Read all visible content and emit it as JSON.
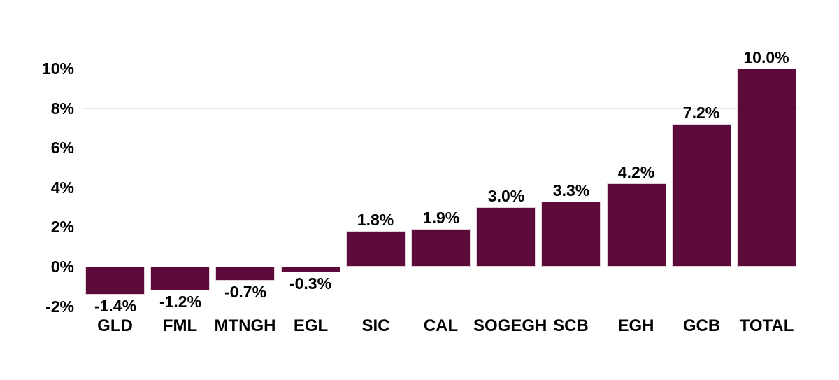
{
  "chart_data": {
    "type": "bar",
    "title": "",
    "xlabel": "",
    "ylabel": "",
    "categories": [
      "GLD",
      "FML",
      "MTNGH",
      "EGL",
      "SIC",
      "CAL",
      "SOGEGH",
      "SCB",
      "EGH",
      "GCB",
      "TOTAL"
    ],
    "values": [
      -1.4,
      -1.2,
      -0.7,
      -0.3,
      1.8,
      1.9,
      3.0,
      3.3,
      4.2,
      7.2,
      10.0
    ],
    "bar_labels": [
      "-1.4%",
      "-1.2%",
      "-0.7%",
      "-0.3%",
      "1.8%",
      "1.9%",
      "3.0%",
      "3.3%",
      "4.2%",
      "7.2%",
      "10.0%"
    ],
    "y_tick_values": [
      10,
      8,
      6,
      4,
      2,
      0,
      -2
    ],
    "y_tick_labels": [
      "10%",
      "8%",
      "6%",
      "4%",
      "2%",
      "0%",
      "-2%"
    ],
    "ylim": [
      -2,
      10
    ],
    "grid": true,
    "legend": false,
    "colors": {
      "bar": "#5C0A3A",
      "bar_border": "#E3D2DC",
      "gridline": "#ECECEC",
      "text": "#000000",
      "background": "#FFFFFF"
    }
  }
}
